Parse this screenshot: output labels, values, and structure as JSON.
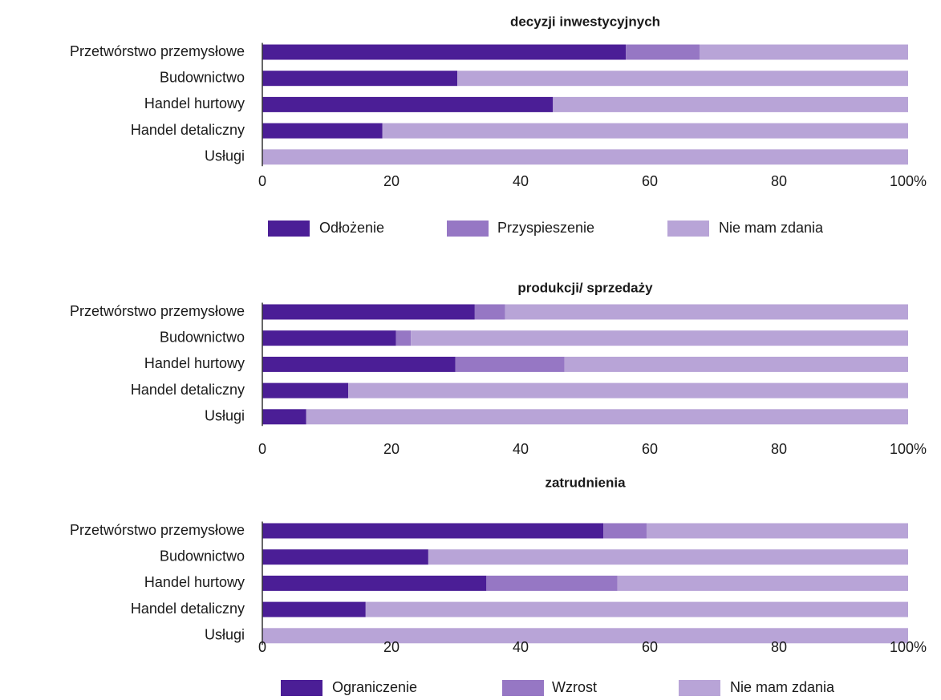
{
  "chart_data": [
    {
      "type": "bar",
      "stacked": true,
      "orientation": "horizontal",
      "title": "decyzji inwestycyjnych",
      "categories": [
        "Przetwórstwo przemysłowe",
        "Budownictwo",
        "Handel hurtowy",
        "Handel detaliczny",
        "Usługi"
      ],
      "series": [
        {
          "name": "Odłożenie",
          "color": "#4b1e96",
          "values": [
            56.3,
            30.2,
            45.0,
            18.6,
            0
          ]
        },
        {
          "name": "Przyspieszenie",
          "color": "#9677c4",
          "values": [
            11.4,
            0,
            0,
            0,
            0
          ]
        },
        {
          "name": "Nie mam zdania",
          "color": "#b8a4d7",
          "values": [
            32.3,
            69.8,
            55.0,
            81.4,
            100
          ]
        }
      ],
      "xlim": [
        0,
        100
      ],
      "xticks": [
        0,
        20,
        40,
        60,
        80,
        {
          "value": 100,
          "label": "100%"
        }
      ]
    },
    {
      "type": "bar",
      "stacked": true,
      "orientation": "horizontal",
      "title": "produkcji/ sprzedaży",
      "categories": [
        "Przetwórstwo przemysłowe",
        "Budownictwo",
        "Handel hurtowy",
        "Handel detaliczny",
        "Usługi"
      ],
      "series": [
        {
          "color": "#4b1e96",
          "values": [
            32.9,
            20.7,
            29.9,
            13.3,
            6.8
          ]
        },
        {
          "color": "#9677c4",
          "values": [
            4.7,
            2.3,
            16.9,
            0,
            0
          ]
        },
        {
          "color": "#b8a4d7",
          "values": [
            62.4,
            77.0,
            53.2,
            86.7,
            93.2
          ]
        }
      ],
      "xlim": [
        0,
        100
      ],
      "xticks": [
        0,
        20,
        40,
        60,
        80,
        {
          "value": 100,
          "label": "100%"
        }
      ]
    },
    {
      "type": "bar",
      "stacked": true,
      "orientation": "horizontal",
      "title": "zatrudnienia",
      "categories": [
        "Przetwórstwo przemysłowe",
        "Budownictwo",
        "Handel hurtowy",
        "Handel detaliczny",
        "Usługi"
      ],
      "series": [
        {
          "name": "Ograniczenie",
          "color": "#4b1e96",
          "values": [
            52.8,
            25.7,
            34.7,
            16.0,
            0
          ]
        },
        {
          "name": "Wzrost",
          "color": "#9677c4",
          "values": [
            6.7,
            0,
            20.3,
            0,
            0
          ]
        },
        {
          "name": "Nie mam zdania",
          "color": "#b8a4d7",
          "values": [
            40.5,
            74.3,
            45.0,
            84.0,
            100
          ]
        }
      ],
      "xlim": [
        0,
        100
      ],
      "xticks": [
        0,
        20,
        40,
        60,
        80,
        {
          "value": 100,
          "label": "100%"
        }
      ]
    }
  ]
}
